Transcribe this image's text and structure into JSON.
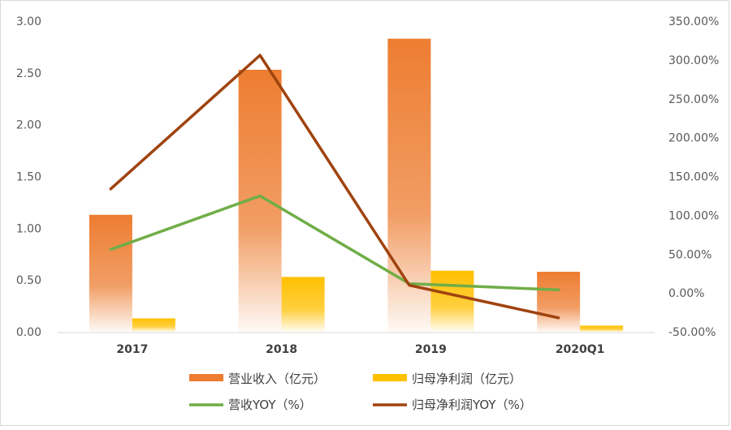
{
  "chart_data": {
    "type": "bar",
    "categories": [
      "2017",
      "2018",
      "2019",
      "2020Q1"
    ],
    "series": [
      {
        "name": "营业收入（亿元）",
        "kind": "bar",
        "axis": "left",
        "color": "#ed7d31",
        "values": [
          1.13,
          2.53,
          2.83,
          0.58
        ]
      },
      {
        "name": "归母净利润（亿元）",
        "kind": "bar",
        "axis": "left",
        "color": "#ffc000",
        "values": [
          0.13,
          0.53,
          0.59,
          0.06
        ]
      },
      {
        "name": "营收YOY（%）",
        "kind": "line",
        "axis": "right",
        "color": "#70ad47",
        "values": [
          56,
          125,
          12,
          4
        ]
      },
      {
        "name": "归母净利润YOY（%）",
        "kind": "line",
        "axis": "right",
        "color": "#a0430f",
        "values": [
          134,
          306,
          10,
          -32
        ]
      }
    ],
    "left_axis": {
      "ylim": [
        0,
        3
      ],
      "ticks": [
        "0.00",
        "0.50",
        "1.00",
        "1.50",
        "2.00",
        "2.50",
        "3.00"
      ]
    },
    "right_axis": {
      "ylim": [
        -50,
        350
      ],
      "ticks": [
        "-50.00%",
        "0.00%",
        "50.00%",
        "100.00%",
        "150.00%",
        "200.00%",
        "250.00%",
        "300.00%",
        "350.00%"
      ]
    },
    "grid": false,
    "legend_position": "bottom",
    "title": "",
    "xlabel": "",
    "ylabel": ""
  }
}
